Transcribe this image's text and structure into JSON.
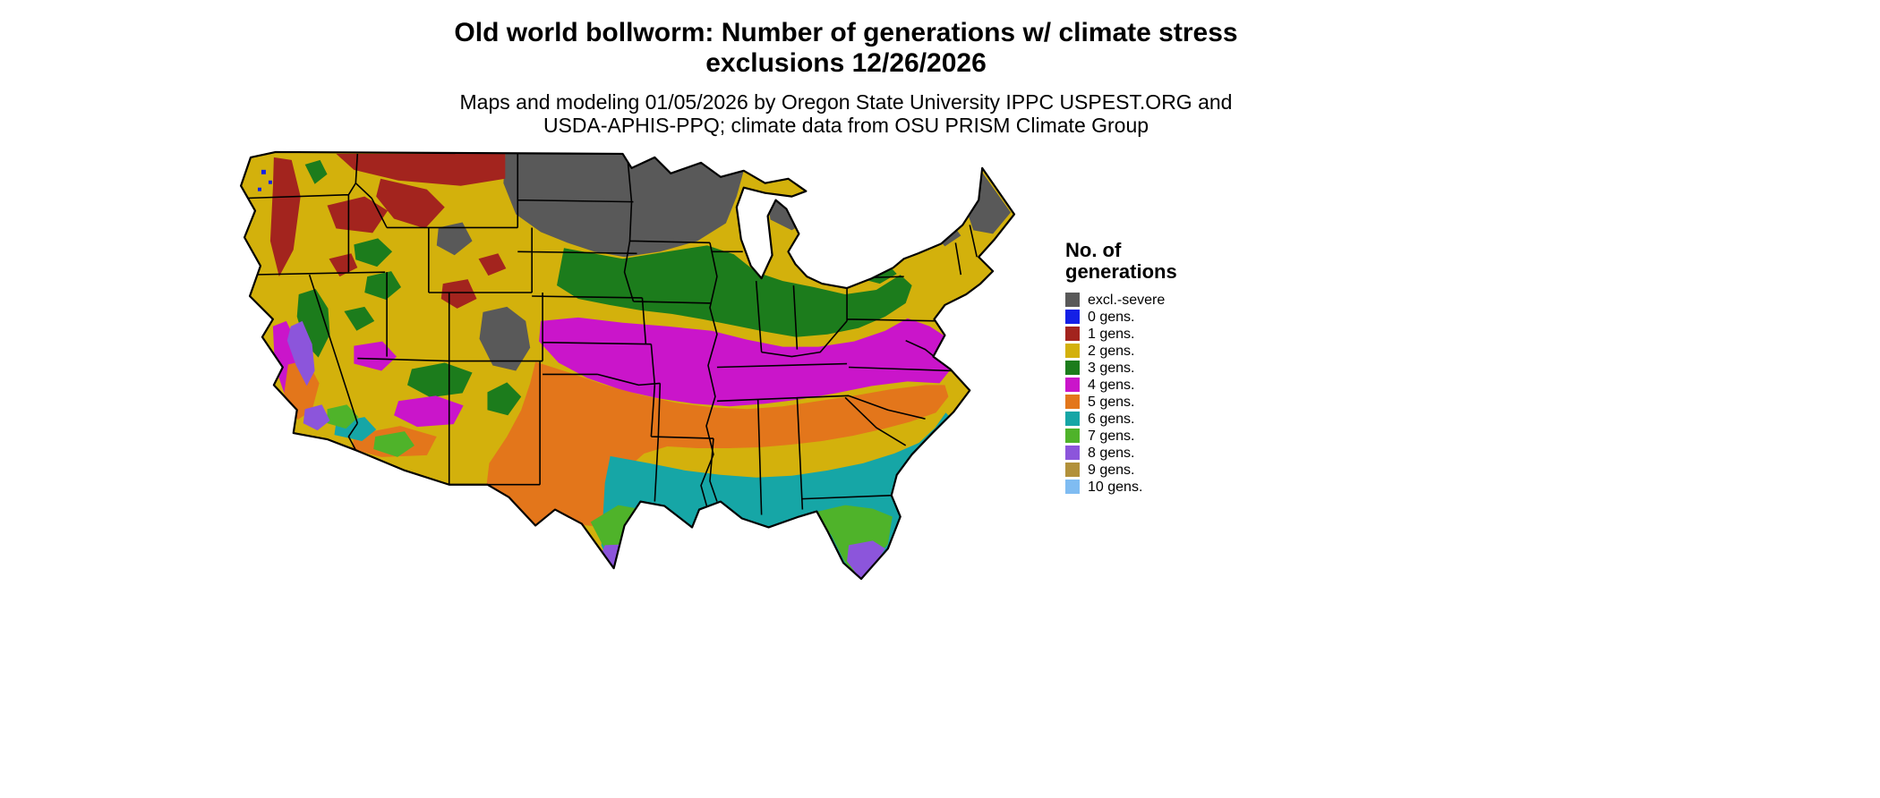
{
  "title": {
    "line1": "Old world bollworm: Number of generations w/ climate stress",
    "line2": "exclusions 12/26/2026"
  },
  "subtitle": {
    "line1": "Maps and modeling 01/05/2026 by Oregon State University IPPC USPEST.ORG and",
    "line2": "USDA-APHIS-PPQ; climate data from OSU PRISM Climate Group"
  },
  "legend": {
    "title_line1": "No. of",
    "title_line2": "generations",
    "items": [
      {
        "label": "excl.-severe",
        "color": "#595959"
      },
      {
        "label": "0 gens.",
        "color": "#1420E6"
      },
      {
        "label": "1 gens.",
        "color": "#A3241E"
      },
      {
        "label": "2 gens.",
        "color": "#D3B10C"
      },
      {
        "label": "3 gens.",
        "color": "#1C7C1C"
      },
      {
        "label": "4 gens.",
        "color": "#CA15CA"
      },
      {
        "label": "5 gens.",
        "color": "#E3761B"
      },
      {
        "label": "6 gens.",
        "color": "#16A6A6"
      },
      {
        "label": "7 gens.",
        "color": "#4FB32A"
      },
      {
        "label": "8 gens.",
        "color": "#8C55DB"
      },
      {
        "label": "9 gens.",
        "color": "#B2913B"
      },
      {
        "label": "10 gens.",
        "color": "#7FBCF2"
      }
    ]
  },
  "map": {
    "region": "Contiguous United States",
    "type": "raster choropleth of modeled pest generations",
    "outline_color": "#000000",
    "background": "#ffffff"
  }
}
